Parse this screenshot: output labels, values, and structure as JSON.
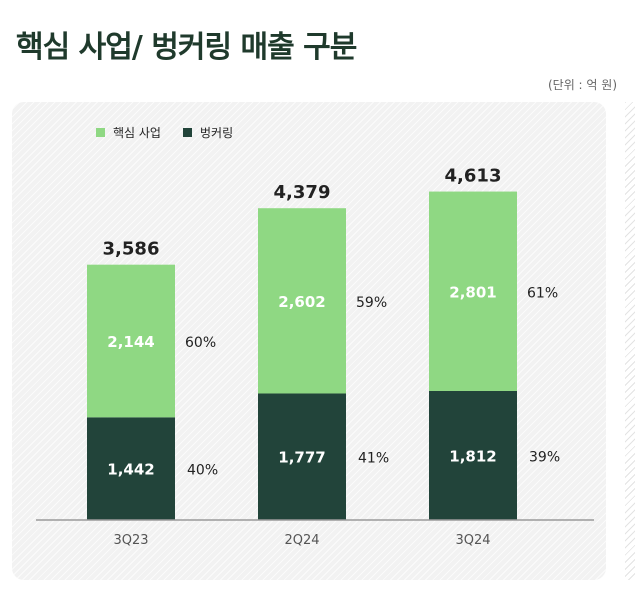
{
  "title": "핵심 사업/ 벙커링 매출 구분",
  "unit_label": "(단위 : 억 원)",
  "colors": {
    "core": "#8fd883",
    "bunkering": "#22443a",
    "axis": "#9a9a9a"
  },
  "chart_data": {
    "type": "bar",
    "stacked": true,
    "categories": [
      "3Q23",
      "2Q24",
      "3Q24"
    ],
    "series": [
      {
        "name": "벙커링",
        "values": [
          1442,
          1777,
          1812
        ],
        "labels": [
          "1,442",
          "1,777",
          "1,812"
        ],
        "percents": [
          "40%",
          "41%",
          "39%"
        ]
      },
      {
        "name": "핵심 사업",
        "values": [
          2144,
          2602,
          2801
        ],
        "labels": [
          "2,144",
          "2,602",
          "2,801"
        ],
        "percents": [
          "60%",
          "59%",
          "61%"
        ]
      }
    ],
    "totals": [
      3586,
      4379,
      4613
    ],
    "total_labels": [
      "3,586",
      "4,379",
      "4,613"
    ],
    "ylim": [
      0,
      5000
    ],
    "legend_position": "top-left",
    "grid": false
  }
}
